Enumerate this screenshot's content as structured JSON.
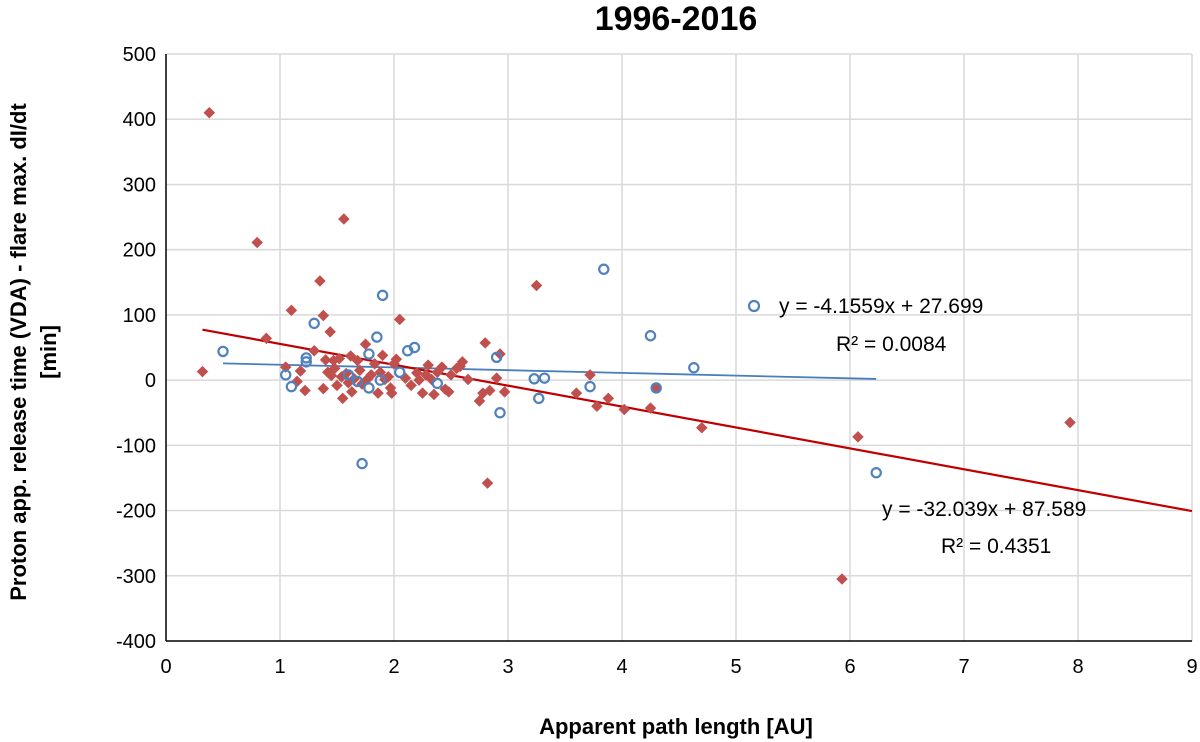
{
  "chart_data": {
    "type": "scatter",
    "title": "1996-2016",
    "xlabel": "Apparent path length [AU]",
    "ylabel_line1": "Proton app. release time (VDA) - flare max. dI/dt",
    "ylabel_line2": "[min]",
    "xlim": [
      0,
      9
    ],
    "ylim": [
      -400,
      500
    ],
    "x_ticks": [
      0,
      1,
      2,
      3,
      4,
      5,
      6,
      7,
      8,
      9
    ],
    "y_ticks": [
      500,
      400,
      300,
      200,
      100,
      0,
      -100,
      -200,
      -300,
      -400
    ],
    "grid": true,
    "colors": {
      "blue": "#4f81bd",
      "red": "#c0504d",
      "blue_line": "#4a7ebb",
      "red_line": "#c00000"
    },
    "series": [
      {
        "name": "blue-circles",
        "marker": "open-circle",
        "points": [
          [
            0.5,
            44
          ],
          [
            1.05,
            8
          ],
          [
            1.1,
            -10
          ],
          [
            1.23,
            28
          ],
          [
            1.23,
            34
          ],
          [
            1.3,
            87
          ],
          [
            1.6,
            8
          ],
          [
            1.68,
            -2
          ],
          [
            1.72,
            -128
          ],
          [
            1.78,
            40
          ],
          [
            1.78,
            -12
          ],
          [
            1.85,
            66
          ],
          [
            1.88,
            0
          ],
          [
            1.9,
            130
          ],
          [
            2.05,
            12
          ],
          [
            2.12,
            45
          ],
          [
            2.18,
            50
          ],
          [
            2.38,
            -5
          ],
          [
            2.9,
            35
          ],
          [
            2.93,
            -50
          ],
          [
            3.23,
            2
          ],
          [
            3.27,
            -28
          ],
          [
            3.32,
            3
          ],
          [
            3.72,
            -10
          ],
          [
            3.84,
            170
          ],
          [
            4.25,
            68
          ],
          [
            4.3,
            -12
          ],
          [
            4.63,
            19
          ],
          [
            6.23,
            -142
          ]
        ],
        "trendline": {
          "slope": -4.1559,
          "intercept": 27.699,
          "x_range": [
            0.5,
            6.23
          ],
          "equation": "y = -4.1559x + 27.699",
          "r2": "R² = 0.0084"
        }
      },
      {
        "name": "red-diamonds",
        "marker": "filled-diamond",
        "points": [
          [
            0.32,
            13
          ],
          [
            0.38,
            410
          ],
          [
            0.8,
            211
          ],
          [
            0.88,
            64
          ],
          [
            1.05,
            20
          ],
          [
            1.1,
            107
          ],
          [
            1.15,
            -2
          ],
          [
            1.18,
            14
          ],
          [
            1.22,
            -16
          ],
          [
            1.3,
            45
          ],
          [
            1.35,
            152
          ],
          [
            1.38,
            99
          ],
          [
            1.38,
            -13
          ],
          [
            1.4,
            31
          ],
          [
            1.42,
            12
          ],
          [
            1.44,
            74
          ],
          [
            1.45,
            7
          ],
          [
            1.47,
            30
          ],
          [
            1.48,
            18
          ],
          [
            1.5,
            -8
          ],
          [
            1.52,
            33
          ],
          [
            1.54,
            5
          ],
          [
            1.55,
            -28
          ],
          [
            1.56,
            247
          ],
          [
            1.58,
            10
          ],
          [
            1.6,
            -4
          ],
          [
            1.62,
            37
          ],
          [
            1.63,
            -18
          ],
          [
            1.65,
            2
          ],
          [
            1.68,
            30
          ],
          [
            1.7,
            15
          ],
          [
            1.72,
            -6
          ],
          [
            1.75,
            55
          ],
          [
            1.77,
            2
          ],
          [
            1.8,
            8
          ],
          [
            1.83,
            25
          ],
          [
            1.86,
            -20
          ],
          [
            1.88,
            12
          ],
          [
            1.9,
            38
          ],
          [
            1.92,
            1
          ],
          [
            1.95,
            5
          ],
          [
            1.97,
            -12
          ],
          [
            1.98,
            -20
          ],
          [
            2.0,
            25
          ],
          [
            2.02,
            32
          ],
          [
            2.05,
            93
          ],
          [
            2.1,
            3
          ],
          [
            2.15,
            -8
          ],
          [
            2.2,
            11
          ],
          [
            2.22,
            0
          ],
          [
            2.25,
            -20
          ],
          [
            2.28,
            8
          ],
          [
            2.3,
            23
          ],
          [
            2.33,
            1
          ],
          [
            2.35,
            -22
          ],
          [
            2.38,
            12
          ],
          [
            2.42,
            20
          ],
          [
            2.45,
            -14
          ],
          [
            2.48,
            -18
          ],
          [
            2.5,
            8
          ],
          [
            2.55,
            18
          ],
          [
            2.58,
            21
          ],
          [
            2.6,
            28
          ],
          [
            2.65,
            1
          ],
          [
            2.75,
            -32
          ],
          [
            2.78,
            -20
          ],
          [
            2.8,
            57
          ],
          [
            2.82,
            -158
          ],
          [
            2.84,
            -16
          ],
          [
            2.9,
            3
          ],
          [
            2.93,
            40
          ],
          [
            2.97,
            -18
          ],
          [
            3.25,
            145
          ],
          [
            3.6,
            -20
          ],
          [
            3.72,
            8
          ],
          [
            3.78,
            -40
          ],
          [
            3.88,
            -28
          ],
          [
            4.02,
            -45
          ],
          [
            4.25,
            -43
          ],
          [
            4.3,
            -12
          ],
          [
            4.7,
            -73
          ],
          [
            5.93,
            -305
          ],
          [
            6.07,
            -87
          ],
          [
            7.93,
            -65
          ]
        ],
        "trendline": {
          "slope": -32.039,
          "intercept": 87.589,
          "x_range": [
            0.32,
            9
          ],
          "equation": "y = -32.039x + 87.589",
          "r2": "R² = 0.4351"
        }
      }
    ]
  }
}
